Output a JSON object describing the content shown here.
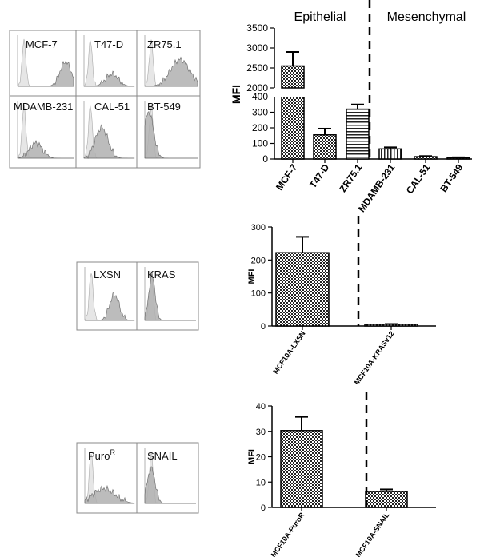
{
  "colors": {
    "bar_fill": "#cccccc",
    "bar_stroke": "#000000",
    "hist_control": "#e6e6e6",
    "hist_sample": "#b0b0b0",
    "panel_border": "#888888"
  },
  "flow_panels": [
    {
      "cells": [
        "MCF-7",
        "T47-D",
        "ZR75.1",
        "MDAMB-231",
        "CAL-51",
        "BT-549"
      ]
    },
    {
      "cells": [
        "LXSN",
        "KRAS"
      ]
    },
    {
      "cells": [
        "PuroR",
        "SNAIL"
      ]
    }
  ],
  "chart_data": [
    {
      "type": "bar",
      "title": "",
      "ylabel": "MFI",
      "region_labels": [
        "Epithelial",
        "Mesenchymal"
      ],
      "categories": [
        "MCF-7",
        "T47-D",
        "ZR75.1",
        "MDAMB-231",
        "CAL-51",
        "BT-549"
      ],
      "values": [
        2550,
        155,
        320,
        65,
        15,
        8
      ],
      "errors": [
        350,
        40,
        30,
        10,
        4,
        3
      ],
      "ylim_lower": [
        0,
        400
      ],
      "ylim_upper": [
        2000,
        3500
      ],
      "yticks_lower": [
        "0",
        "100",
        "200",
        "300",
        "400"
      ],
      "yticks_upper": [
        "2000",
        "2500",
        "3000",
        "3500"
      ],
      "divider_after_index": 2
    },
    {
      "type": "bar",
      "ylabel": "MFI",
      "categories": [
        "MCF10A-LXSN",
        "MCF10A-KRASv12"
      ],
      "values": [
        222,
        5
      ],
      "errors": [
        48,
        1
      ],
      "ylim": [
        0,
        300
      ],
      "yticks": [
        "0",
        "100",
        "200",
        "300"
      ],
      "divider_after_index": 0
    },
    {
      "type": "bar",
      "ylabel": "MFI",
      "categories": [
        "MCF10A-PuroR",
        "MCF10A-SNAIL"
      ],
      "values": [
        30.3,
        6.3
      ],
      "errors": [
        5.4,
        0.8
      ],
      "ylim": [
        0,
        40
      ],
      "yticks": [
        "0",
        "10",
        "20",
        "30",
        "40"
      ],
      "divider_after_index": 0
    }
  ]
}
